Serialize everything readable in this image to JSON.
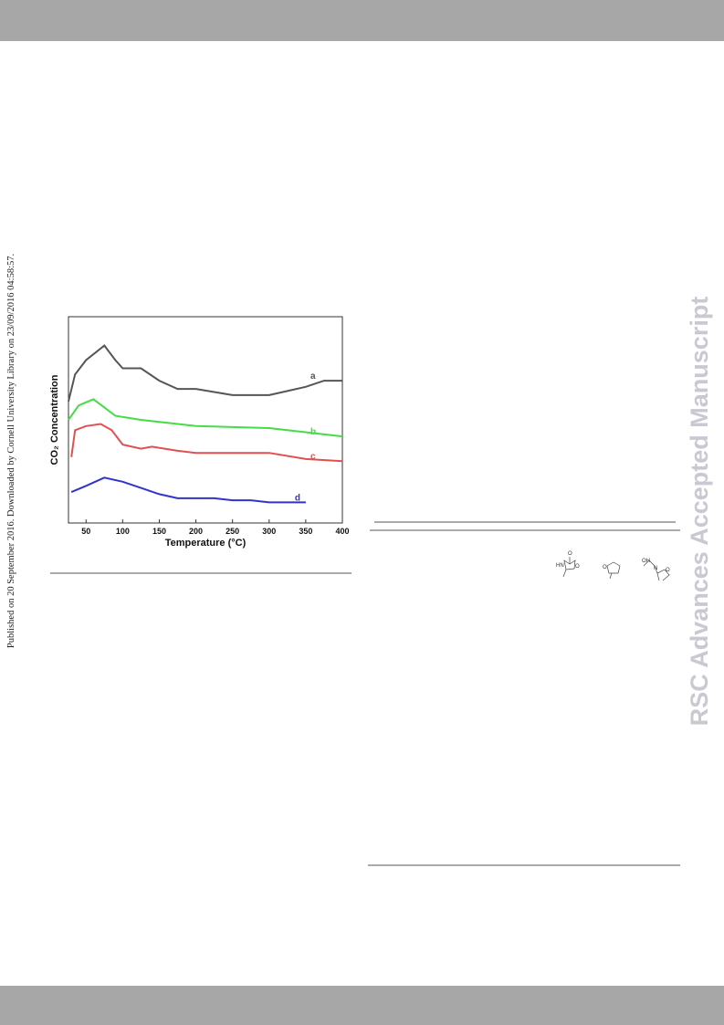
{
  "sidebar": "Published on 20 September 2016. Downloaded by Cornell University Library on 23/09/2016 04:58:57.",
  "watermark": "RSC Advances Accepted Manuscript",
  "structures": [
    "HN",
    "O",
    "O",
    "O",
    "OH",
    "N",
    "O"
  ],
  "chart_data": {
    "type": "line",
    "xlabel": "Temperature (°C)",
    "ylabel": "CO₂ Concentration",
    "xlim": [
      26,
      400
    ],
    "xticks": [
      50,
      100,
      150,
      200,
      250,
      300,
      350,
      400
    ],
    "ylim": [
      0,
      1
    ],
    "series": [
      {
        "name": "a",
        "color": "#555555",
        "x": [
          26,
          35,
          50,
          75,
          90,
          100,
          125,
          150,
          175,
          200,
          250,
          300,
          325,
          350,
          375,
          400
        ],
        "values": [
          0.59,
          0.72,
          0.79,
          0.86,
          0.79,
          0.75,
          0.75,
          0.69,
          0.65,
          0.65,
          0.62,
          0.62,
          0.64,
          0.66,
          0.69,
          0.69
        ]
      },
      {
        "name": "b",
        "color": "#44dd44",
        "x": [
          26,
          40,
          60,
          75,
          90,
          125,
          200,
          300,
          400
        ],
        "values": [
          0.5,
          0.57,
          0.6,
          0.56,
          0.52,
          0.5,
          0.47,
          0.46,
          0.42
        ]
      },
      {
        "name": "c",
        "color": "#e05050",
        "x": [
          30,
          35,
          50,
          70,
          85,
          100,
          125,
          140,
          175,
          200,
          300,
          350,
          400
        ],
        "values": [
          0.32,
          0.45,
          0.47,
          0.48,
          0.45,
          0.38,
          0.36,
          0.37,
          0.35,
          0.34,
          0.34,
          0.31,
          0.3
        ]
      },
      {
        "name": "d",
        "color": "#3333cc",
        "x": [
          30,
          50,
          75,
          100,
          125,
          150,
          175,
          200,
          225,
          250,
          275,
          300,
          350
        ],
        "values": [
          0.15,
          0.18,
          0.22,
          0.2,
          0.17,
          0.14,
          0.12,
          0.12,
          0.12,
          0.11,
          0.11,
          0.1,
          0.1
        ]
      }
    ]
  }
}
